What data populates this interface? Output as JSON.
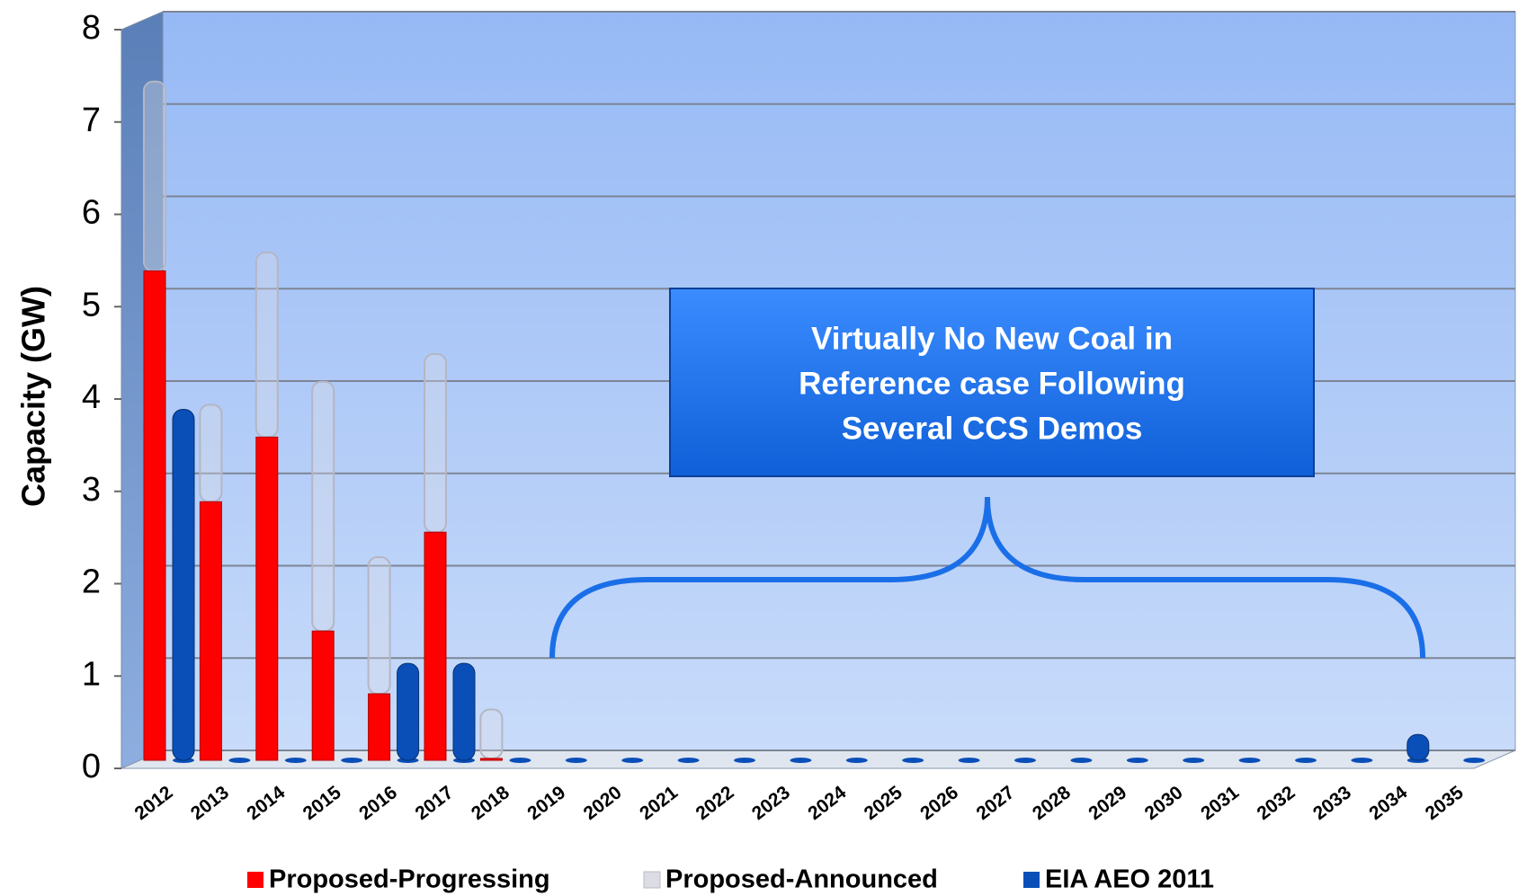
{
  "chart_data": {
    "type": "bar",
    "y_label": "Capacity (GW)",
    "annotation": [
      "Virtually No New Coal in",
      "Reference case Following",
      "Several CCS Demos"
    ],
    "categories": [
      "2012",
      "2013",
      "2014",
      "2015",
      "2016",
      "2017",
      "2018",
      "2019",
      "2020",
      "2021",
      "2022",
      "2023",
      "2024",
      "2025",
      "2026",
      "2027",
      "2028",
      "2029",
      "2030",
      "2031",
      "2032",
      "2033",
      "2034",
      "2035"
    ],
    "series": [
      {
        "name": "Proposed-Progressing",
        "color": "#ff0000",
        "values": [
          5.3,
          2.8,
          3.5,
          1.4,
          0.72,
          2.47,
          0.02,
          0,
          0,
          0,
          0,
          0,
          0,
          0,
          0,
          0,
          0,
          0,
          0,
          0,
          0,
          0,
          0,
          0
        ]
      },
      {
        "name": "Proposed-Announced",
        "color": "#dcdce4",
        "values": [
          2.05,
          1.05,
          2.0,
          2.7,
          1.48,
          1.93,
          0.53,
          0,
          0,
          0,
          0,
          0,
          0,
          0,
          0,
          0,
          0,
          0,
          0,
          0,
          0,
          0,
          0,
          0
        ]
      },
      {
        "name": "EIA  AEO 2011",
        "color": "#0a4fb8",
        "values": [
          3.8,
          0,
          0,
          0,
          1.05,
          1.05,
          0,
          0,
          0,
          0,
          0,
          0,
          0,
          0,
          0,
          0,
          0,
          0,
          0,
          0,
          0,
          0,
          0.28,
          0
        ]
      }
    ],
    "ylim": [
      0,
      8
    ],
    "yticks": [
      0,
      1,
      2,
      3,
      4,
      5,
      6,
      7,
      8
    ],
    "grid": true
  }
}
